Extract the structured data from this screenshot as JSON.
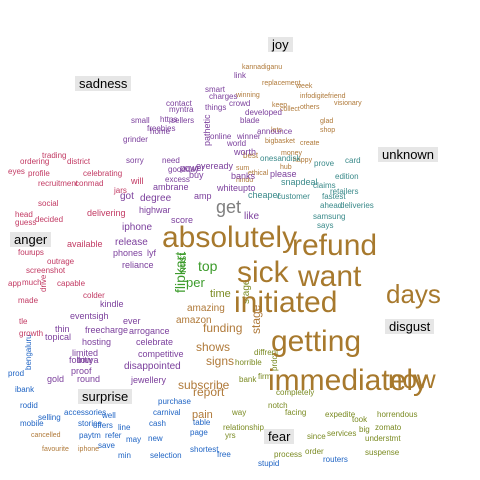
{
  "colors": {
    "joy": "#b07a3a",
    "sadness": "#3d4fa6",
    "unknown": "#7f7f7f",
    "anger": "#c23a63",
    "disgust": "#3a8a8a",
    "surprise": "#1f64c4",
    "fear": "#7b8b23",
    "big": "#a7792d",
    "green": "#3c9b2b",
    "purple": "#7b3f9c"
  },
  "categories": {
    "joy": "joy",
    "sadness": "sadness",
    "unknown": "unknown",
    "anger": "anger",
    "disgust": "disgust",
    "surprise": "surprise",
    "fear": "fear"
  },
  "words": [
    {
      "t": "absolutely",
      "c": "big",
      "s": 30
    },
    {
      "t": "refund",
      "c": "big",
      "s": 30
    },
    {
      "t": "sick",
      "c": "big",
      "s": 30
    },
    {
      "t": "want",
      "c": "big",
      "s": 30
    },
    {
      "t": "initiated",
      "c": "big",
      "s": 30
    },
    {
      "t": "days",
      "c": "big",
      "s": 26
    },
    {
      "t": "getting",
      "c": "big",
      "s": 30
    },
    {
      "t": "now",
      "c": "big",
      "s": 26
    },
    {
      "t": "immediately",
      "c": "big",
      "s": 30
    },
    {
      "t": "get",
      "c": "unknown",
      "s": 18
    },
    {
      "t": "top",
      "c": "green",
      "s": 14
    },
    {
      "t": "flipkart",
      "c": "green",
      "s": 14
    },
    {
      "t": "per",
      "c": "green",
      "s": 13
    },
    {
      "t": "mist",
      "c": "green",
      "s": 11
    },
    {
      "t": "time",
      "c": "fear",
      "s": 11
    },
    {
      "t": "stage",
      "c": "joy",
      "s": 12
    },
    {
      "t": "funding",
      "c": "joy",
      "s": 12
    },
    {
      "t": "shows",
      "c": "joy",
      "s": 12
    },
    {
      "t": "signs",
      "c": "joy",
      "s": 12
    },
    {
      "t": "report",
      "c": "joy",
      "s": 12
    },
    {
      "t": "subscribe",
      "c": "joy",
      "s": 12
    },
    {
      "t": "pain",
      "c": "joy",
      "s": 11
    },
    {
      "t": "like",
      "c": "purple",
      "s": 10
    },
    {
      "t": "stage",
      "c": "fear",
      "s": 10
    },
    {
      "t": "amazing",
      "c": "joy",
      "s": 10
    },
    {
      "t": "amazon",
      "c": "joy",
      "s": 10
    },
    {
      "t": "iphone",
      "c": "purple",
      "s": 10
    },
    {
      "t": "release",
      "c": "purple",
      "s": 10
    },
    {
      "t": "phones",
      "c": "purple",
      "s": 9
    },
    {
      "t": "reliance",
      "c": "purple",
      "s": 9
    },
    {
      "t": "disappointed",
      "c": "purple",
      "s": 10
    },
    {
      "t": "competitive",
      "c": "purple",
      "s": 9
    },
    {
      "t": "celebrate",
      "c": "purple",
      "s": 9
    },
    {
      "t": "arrogance",
      "c": "purple",
      "s": 9
    },
    {
      "t": "freecharge",
      "c": "purple",
      "s": 9
    },
    {
      "t": "hosting",
      "c": "purple",
      "s": 9
    },
    {
      "t": "limited",
      "c": "purple",
      "s": 9
    },
    {
      "t": "thin",
      "c": "purple",
      "s": 9
    },
    {
      "t": "topical",
      "c": "purple",
      "s": 9
    },
    {
      "t": "tritiya",
      "c": "purple",
      "s": 9
    },
    {
      "t": "follow",
      "c": "purple",
      "s": 9
    },
    {
      "t": "proof",
      "c": "purple",
      "s": 9
    },
    {
      "t": "gold",
      "c": "purple",
      "s": 9
    },
    {
      "t": "round",
      "c": "purple",
      "s": 9
    },
    {
      "t": "jewellery",
      "c": "purple",
      "s": 9
    },
    {
      "t": "delivering",
      "c": "anger",
      "s": 9
    },
    {
      "t": "got",
      "c": "purple",
      "s": 10
    },
    {
      "t": "degree",
      "c": "purple",
      "s": 10
    },
    {
      "t": "highwar",
      "c": "purple",
      "s": 9
    },
    {
      "t": "score",
      "c": "purple",
      "s": 9
    },
    {
      "t": "eventsigh",
      "c": "purple",
      "s": 9
    },
    {
      "t": "kindle",
      "c": "purple",
      "s": 9
    },
    {
      "t": "ever",
      "c": "purple",
      "s": 9
    },
    {
      "t": "lyf",
      "c": "purple",
      "s": 9
    },
    {
      "t": "available",
      "c": "anger",
      "s": 9
    },
    {
      "t": "outrage",
      "c": "anger",
      "s": 8
    },
    {
      "t": "screenshot",
      "c": "anger",
      "s": 8
    },
    {
      "t": "four",
      "c": "anger",
      "s": 8
    },
    {
      "t": "ups",
      "c": "anger",
      "s": 8
    },
    {
      "t": "app",
      "c": "anger",
      "s": 8
    },
    {
      "t": "much",
      "c": "anger",
      "s": 8
    },
    {
      "t": "capable",
      "c": "anger",
      "s": 8
    },
    {
      "t": "colder",
      "c": "anger",
      "s": 8
    },
    {
      "t": "made",
      "c": "anger",
      "s": 8
    },
    {
      "t": "tle",
      "c": "anger",
      "s": 8
    },
    {
      "t": "growth",
      "c": "anger",
      "s": 8
    },
    {
      "t": "drive",
      "c": "anger",
      "s": 8
    },
    {
      "t": "recruitment",
      "c": "anger",
      "s": 8
    },
    {
      "t": "conmad",
      "c": "anger",
      "s": 8
    },
    {
      "t": "social",
      "c": "anger",
      "s": 8
    },
    {
      "t": "head",
      "c": "anger",
      "s": 8
    },
    {
      "t": "guess",
      "c": "anger",
      "s": 8
    },
    {
      "t": "decided",
      "c": "anger",
      "s": 8
    },
    {
      "t": "eyes",
      "c": "anger",
      "s": 8
    },
    {
      "t": "profile",
      "c": "anger",
      "s": 8
    },
    {
      "t": "ordering",
      "c": "anger",
      "s": 8
    },
    {
      "t": "trading",
      "c": "anger",
      "s": 8
    },
    {
      "t": "district",
      "c": "anger",
      "s": 8
    },
    {
      "t": "celebrating",
      "c": "anger",
      "s": 8
    },
    {
      "t": "will",
      "c": "anger",
      "s": 9
    },
    {
      "t": "jars",
      "c": "anger",
      "s": 8
    },
    {
      "t": "ambrane",
      "c": "purple",
      "s": 9
    },
    {
      "t": "eveready",
      "c": "purple",
      "s": 9
    },
    {
      "t": "power",
      "c": "purple",
      "s": 9
    },
    {
      "t": "buy",
      "c": "purple",
      "s": 9
    },
    {
      "t": "whiteupto",
      "c": "purple",
      "s": 9
    },
    {
      "t": "excess",
      "c": "purple",
      "s": 8
    },
    {
      "t": "amp",
      "c": "purple",
      "s": 9
    },
    {
      "t": "banks",
      "c": "purple",
      "s": 9
    },
    {
      "t": "please",
      "c": "purple",
      "s": 9
    },
    {
      "t": "snapdeal",
      "c": "disgust",
      "s": 9
    },
    {
      "t": "cheaper",
      "c": "disgust",
      "s": 9
    },
    {
      "t": "customer",
      "c": "disgust",
      "s": 8
    },
    {
      "t": "samsung",
      "c": "disgust",
      "s": 8
    },
    {
      "t": "says",
      "c": "disgust",
      "s": 8
    },
    {
      "t": "claims",
      "c": "disgust",
      "s": 8
    },
    {
      "t": "fastest",
      "c": "disgust",
      "s": 8
    },
    {
      "t": "ahead",
      "c": "disgust",
      "s": 8
    },
    {
      "t": "retailers",
      "c": "disgust",
      "s": 8
    },
    {
      "t": "deliveries",
      "c": "disgust",
      "s": 8
    },
    {
      "t": "prove",
      "c": "disgust",
      "s": 8
    },
    {
      "t": "edition",
      "c": "disgust",
      "s": 8
    },
    {
      "t": "card",
      "c": "disgust",
      "s": 8
    },
    {
      "t": "onesandisk",
      "c": "disgust",
      "s": 8
    },
    {
      "t": "online",
      "c": "purple",
      "s": 8
    },
    {
      "t": "pathetic",
      "c": "purple",
      "s": 9
    },
    {
      "t": "worth",
      "c": "purple",
      "s": 9
    },
    {
      "t": "home",
      "c": "purple",
      "s": 8
    },
    {
      "t": "grinder",
      "c": "purple",
      "s": 8
    },
    {
      "t": "sorry",
      "c": "purple",
      "s": 8
    },
    {
      "t": "need",
      "c": "purple",
      "s": 8
    },
    {
      "t": "goodday",
      "c": "purple",
      "s": 8
    },
    {
      "t": "small",
      "c": "purple",
      "s": 8
    },
    {
      "t": "freebies",
      "c": "purple",
      "s": 8
    },
    {
      "t": "contact",
      "c": "purple",
      "s": 8
    },
    {
      "t": "charges",
      "c": "purple",
      "s": 8
    },
    {
      "t": "things",
      "c": "purple",
      "s": 8
    },
    {
      "t": "crowd",
      "c": "purple",
      "s": 8
    },
    {
      "t": "blade",
      "c": "purple",
      "s": 8
    },
    {
      "t": "developed",
      "c": "purple",
      "s": 8
    },
    {
      "t": "announce",
      "c": "purple",
      "s": 8
    },
    {
      "t": "winner",
      "c": "purple",
      "s": 8
    },
    {
      "t": "world",
      "c": "purple",
      "s": 8
    },
    {
      "t": "myntra",
      "c": "purple",
      "s": 8
    },
    {
      "t": "sellers",
      "c": "purple",
      "s": 8
    },
    {
      "t": "https",
      "c": "purple",
      "s": 8
    },
    {
      "t": "smart",
      "c": "purple",
      "s": 8
    },
    {
      "t": "link",
      "c": "purple",
      "s": 8
    },
    {
      "t": "kannadiganu",
      "c": "joy",
      "s": 7
    },
    {
      "t": "replacement",
      "c": "joy",
      "s": 7
    },
    {
      "t": "winning",
      "c": "joy",
      "s": 7
    },
    {
      "t": "week",
      "c": "joy",
      "s": 7
    },
    {
      "t": "infodigitefriend",
      "c": "joy",
      "s": 7
    },
    {
      "t": "others",
      "c": "joy",
      "s": 7
    },
    {
      "t": "visionary",
      "c": "joy",
      "s": 7
    },
    {
      "t": "collect",
      "c": "joy",
      "s": 7
    },
    {
      "t": "keep",
      "c": "joy",
      "s": 7
    },
    {
      "t": "glad",
      "c": "joy",
      "s": 7
    },
    {
      "t": "shop",
      "c": "joy",
      "s": 7
    },
    {
      "t": "lets",
      "c": "joy",
      "s": 7
    },
    {
      "t": "bigbasket",
      "c": "joy",
      "s": 7
    },
    {
      "t": "create",
      "c": "joy",
      "s": 7
    },
    {
      "t": "happy",
      "c": "joy",
      "s": 7
    },
    {
      "t": "money",
      "c": "joy",
      "s": 7
    },
    {
      "t": "best",
      "c": "joy",
      "s": 8
    },
    {
      "t": "sum",
      "c": "joy",
      "s": 7
    },
    {
      "t": "hub",
      "c": "joy",
      "s": 7
    },
    {
      "t": "hindu",
      "c": "joy",
      "s": 7
    },
    {
      "t": "ethical",
      "c": "joy",
      "s": 7
    },
    {
      "t": "iphone",
      "c": "joy",
      "s": 7
    },
    {
      "t": "favourite",
      "c": "joy",
      "s": 7
    },
    {
      "t": "cancelled",
      "c": "joy",
      "s": 7
    },
    {
      "t": "mobile",
      "c": "surprise",
      "s": 8
    },
    {
      "t": "selling",
      "c": "surprise",
      "s": 8
    },
    {
      "t": "stories",
      "c": "surprise",
      "s": 8
    },
    {
      "t": "accessories",
      "c": "surprise",
      "s": 8
    },
    {
      "t": "offers",
      "c": "surprise",
      "s": 8
    },
    {
      "t": "paytm",
      "c": "surprise",
      "s": 8
    },
    {
      "t": "save",
      "c": "surprise",
      "s": 8
    },
    {
      "t": "refer",
      "c": "surprise",
      "s": 8
    },
    {
      "t": "may",
      "c": "surprise",
      "s": 8
    },
    {
      "t": "min",
      "c": "surprise",
      "s": 8
    },
    {
      "t": "line",
      "c": "surprise",
      "s": 8
    },
    {
      "t": "well",
      "c": "surprise",
      "s": 8
    },
    {
      "t": "new",
      "c": "surprise",
      "s": 8
    },
    {
      "t": "cash",
      "c": "surprise",
      "s": 8
    },
    {
      "t": "selection",
      "c": "surprise",
      "s": 8
    },
    {
      "t": "carnival",
      "c": "surprise",
      "s": 8
    },
    {
      "t": "table",
      "c": "surprise",
      "s": 8
    },
    {
      "t": "page",
      "c": "surprise",
      "s": 8
    },
    {
      "t": "shortest",
      "c": "surprise",
      "s": 8
    },
    {
      "t": "prod",
      "c": "surprise",
      "s": 8
    },
    {
      "t": "ibank",
      "c": "surprise",
      "s": 8
    },
    {
      "t": "rodid",
      "c": "surprise",
      "s": 8
    },
    {
      "t": "bengaluru",
      "c": "surprise",
      "s": 8
    },
    {
      "t": "purchase",
      "c": "surprise",
      "s": 8
    },
    {
      "t": "free",
      "c": "surprise",
      "s": 8
    },
    {
      "t": "stupid",
      "c": "surprise",
      "s": 8
    },
    {
      "t": "routers",
      "c": "surprise",
      "s": 8
    },
    {
      "t": "suspense",
      "c": "fear",
      "s": 8
    },
    {
      "t": "understmt",
      "c": "fear",
      "s": 8
    },
    {
      "t": "zomato",
      "c": "fear",
      "s": 8
    },
    {
      "t": "services",
      "c": "fear",
      "s": 8
    },
    {
      "t": "since",
      "c": "fear",
      "s": 8
    },
    {
      "t": "order",
      "c": "fear",
      "s": 8
    },
    {
      "t": "process",
      "c": "fear",
      "s": 8
    },
    {
      "t": "took",
      "c": "fear",
      "s": 8
    },
    {
      "t": "expedite",
      "c": "fear",
      "s": 8
    },
    {
      "t": "horrendous",
      "c": "fear",
      "s": 8
    },
    {
      "t": "big",
      "c": "fear",
      "s": 8
    },
    {
      "t": "relationship",
      "c": "fear",
      "s": 8
    },
    {
      "t": "yrs",
      "c": "fear",
      "s": 8
    },
    {
      "t": "way",
      "c": "fear",
      "s": 8
    },
    {
      "t": "facing",
      "c": "fear",
      "s": 8
    },
    {
      "t": "notch",
      "c": "fear",
      "s": 8
    },
    {
      "t": "completely",
      "c": "fear",
      "s": 8
    },
    {
      "t": "prdct",
      "c": "fear",
      "s": 8
    },
    {
      "t": "bank",
      "c": "fear",
      "s": 8
    },
    {
      "t": "firm",
      "c": "fear",
      "s": 8
    },
    {
      "t": "horrible",
      "c": "fear",
      "s": 8
    },
    {
      "t": "diffrent",
      "c": "fear",
      "s": 8
    },
    {
      "t": "jst",
      "c": "fear",
      "s": 8
    },
    {
      "t": "thats",
      "c": "fear",
      "s": 8
    },
    {
      "t": "feb",
      "c": "fear",
      "s": 8
    }
  ]
}
